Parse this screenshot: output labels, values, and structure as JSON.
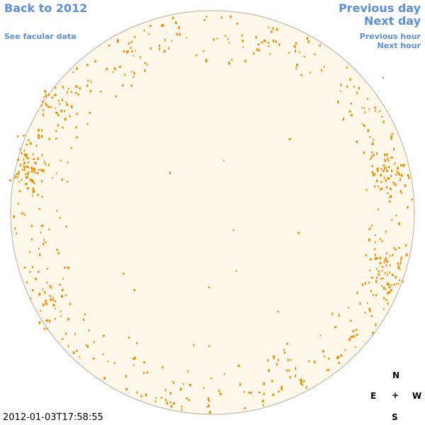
{
  "links": {
    "back": "Back to 2012",
    "facular_data": "See facular data",
    "previous_day": "Previous day",
    "next_day": "Next day",
    "previous_hour": "Previous hour",
    "next_hour": "Next hour"
  },
  "timestamp": "2012-01-03T17:58:55",
  "compass": {
    "north": "N",
    "east": "E",
    "center": "+",
    "west": "W",
    "south": "S"
  }
}
